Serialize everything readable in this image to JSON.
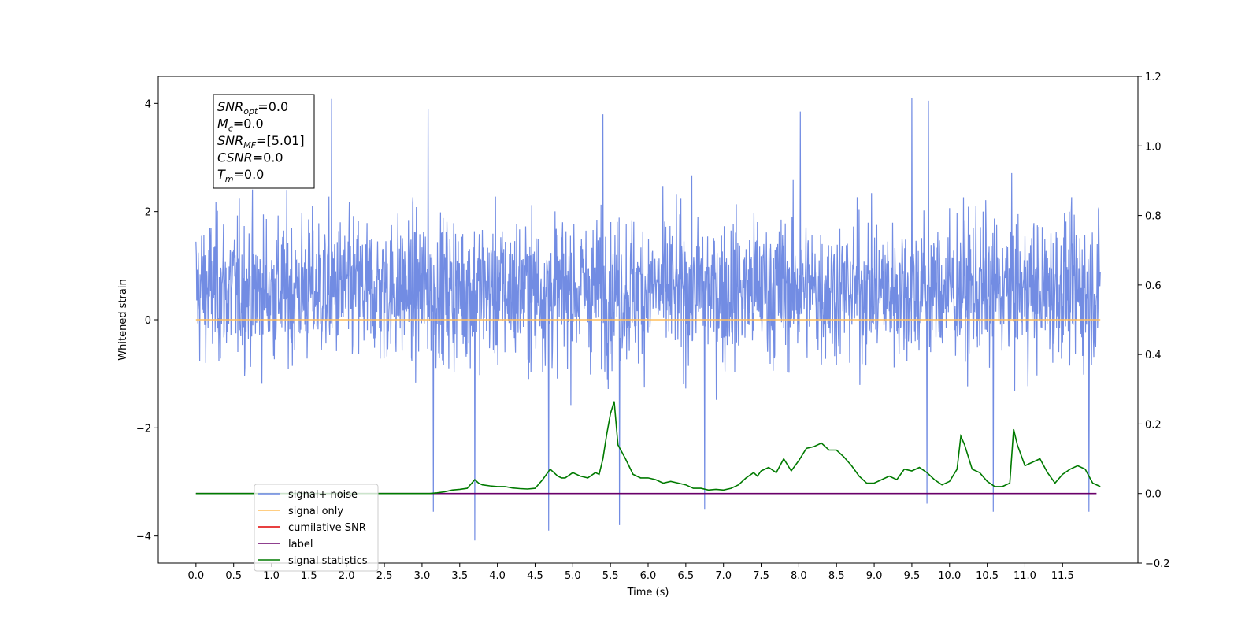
{
  "chart_data": {
    "type": "line",
    "xlabel": "Time (s)",
    "ylabel": "Whitened strain",
    "xlim": [
      -0.5,
      12.5
    ],
    "ylim": [
      -4.5,
      4.5
    ],
    "y2lim": [
      -0.2,
      1.2
    ],
    "x_ticks": [
      "0.0",
      "0.5",
      "1.0",
      "1.5",
      "2.0",
      "2.5",
      "3.0",
      "3.5",
      "4.0",
      "4.5",
      "5.0",
      "5.5",
      "6.0",
      "6.5",
      "7.0",
      "7.5",
      "8.0",
      "8.5",
      "9.0",
      "9.5",
      "10.0",
      "10.5",
      "11.0",
      "11.5"
    ],
    "y_ticks": [
      "4",
      "2",
      "0",
      "−2",
      "−4"
    ],
    "y2_ticks": [
      "1.2",
      "1.0",
      "0.8",
      "0.6",
      "0.4",
      "0.2",
      "0.0",
      "−0.2"
    ],
    "grid": false,
    "legend_position": "lower-left",
    "info_box": {
      "lines": [
        {
          "main": "SNR",
          "sub": "opt",
          "rest": "=0.0"
        },
        {
          "main": "M",
          "sub": "c",
          "rest": "=0.0"
        },
        {
          "main": "SNR",
          "sub": "MF",
          "rest": "=[5.01]"
        },
        {
          "main": "CSNR",
          "sub": "",
          "rest": "=0.0"
        },
        {
          "main": "T",
          "sub": "m",
          "rest": "=0.0"
        }
      ]
    },
    "series": [
      {
        "name": "signal+ noise",
        "color": "#6a86e2",
        "axis": "left",
        "x_range": [
          0.0,
          12.0
        ],
        "mean": 0.0,
        "typical_range": [
          -1.9,
          2.3
        ],
        "spikes": [
          {
            "x": 1.8,
            "y": 4.08
          },
          {
            "x": 3.08,
            "y": 3.9
          },
          {
            "x": 5.4,
            "y": 3.8
          },
          {
            "x": 8.02,
            "y": 3.85
          },
          {
            "x": 9.5,
            "y": 4.1
          },
          {
            "x": 9.72,
            "y": 4.05
          },
          {
            "x": 3.15,
            "y": -3.55
          },
          {
            "x": 3.7,
            "y": -4.08
          },
          {
            "x": 4.68,
            "y": -3.9
          },
          {
            "x": 5.62,
            "y": -3.8
          },
          {
            "x": 6.75,
            "y": -3.5
          },
          {
            "x": 9.7,
            "y": -3.4
          },
          {
            "x": 10.58,
            "y": -3.55
          },
          {
            "x": 11.85,
            "y": -3.55
          }
        ]
      },
      {
        "name": "signal only",
        "color": "#ffbd5a",
        "axis": "left",
        "x": [
          0.0,
          12.0
        ],
        "y": [
          0.0,
          0.0
        ]
      },
      {
        "name": "cumilative SNR",
        "color": "#e00000",
        "axis": "right",
        "x": [],
        "y": []
      },
      {
        "name": "label",
        "color": "#6a006a",
        "axis": "right",
        "x": [
          0.0,
          11.95
        ],
        "y": [
          0.0,
          0.0
        ]
      },
      {
        "name": "signal statistics",
        "color": "#007a00",
        "axis": "right",
        "x": [
          0.0,
          1.0,
          2.0,
          2.5,
          3.0,
          3.1,
          3.2,
          3.3,
          3.4,
          3.5,
          3.6,
          3.7,
          3.75,
          3.8,
          3.9,
          4.0,
          4.1,
          4.2,
          4.3,
          4.4,
          4.5,
          4.6,
          4.7,
          4.8,
          4.85,
          4.9,
          5.0,
          5.1,
          5.2,
          5.3,
          5.35,
          5.4,
          5.45,
          5.5,
          5.55,
          5.6,
          5.65,
          5.7,
          5.8,
          5.9,
          6.0,
          6.1,
          6.2,
          6.3,
          6.4,
          6.5,
          6.6,
          6.7,
          6.8,
          6.9,
          7.0,
          7.1,
          7.2,
          7.3,
          7.4,
          7.45,
          7.5,
          7.6,
          7.7,
          7.8,
          7.9,
          8.0,
          8.1,
          8.2,
          8.3,
          8.4,
          8.5,
          8.6,
          8.7,
          8.8,
          8.9,
          9.0,
          9.1,
          9.2,
          9.3,
          9.4,
          9.5,
          9.6,
          9.7,
          9.8,
          9.9,
          10.0,
          10.1,
          10.15,
          10.2,
          10.3,
          10.4,
          10.5,
          10.6,
          10.7,
          10.8,
          10.85,
          10.9,
          11.0,
          11.1,
          11.2,
          11.3,
          11.4,
          11.5,
          11.6,
          11.7,
          11.8,
          11.9,
          12.0
        ],
        "y": [
          0.0,
          0.0,
          0.0,
          0.0,
          0.0,
          0.0,
          0.002,
          0.005,
          0.01,
          0.012,
          0.015,
          0.04,
          0.03,
          0.025,
          0.022,
          0.02,
          0.02,
          0.016,
          0.014,
          0.013,
          0.015,
          0.04,
          0.07,
          0.05,
          0.045,
          0.045,
          0.06,
          0.05,
          0.045,
          0.06,
          0.055,
          0.1,
          0.17,
          0.23,
          0.265,
          0.14,
          0.12,
          0.1,
          0.055,
          0.045,
          0.045,
          0.04,
          0.03,
          0.035,
          0.03,
          0.025,
          0.015,
          0.015,
          0.01,
          0.012,
          0.01,
          0.015,
          0.025,
          0.045,
          0.06,
          0.05,
          0.065,
          0.075,
          0.06,
          0.1,
          0.065,
          0.095,
          0.13,
          0.135,
          0.145,
          0.125,
          0.125,
          0.105,
          0.08,
          0.05,
          0.03,
          0.03,
          0.04,
          0.05,
          0.04,
          0.07,
          0.065,
          0.075,
          0.06,
          0.04,
          0.025,
          0.035,
          0.07,
          0.165,
          0.14,
          0.07,
          0.06,
          0.035,
          0.02,
          0.02,
          0.03,
          0.185,
          0.14,
          0.08,
          0.09,
          0.1,
          0.06,
          0.03,
          0.055,
          0.07,
          0.08,
          0.07,
          0.03,
          0.02
        ]
      }
    ]
  }
}
